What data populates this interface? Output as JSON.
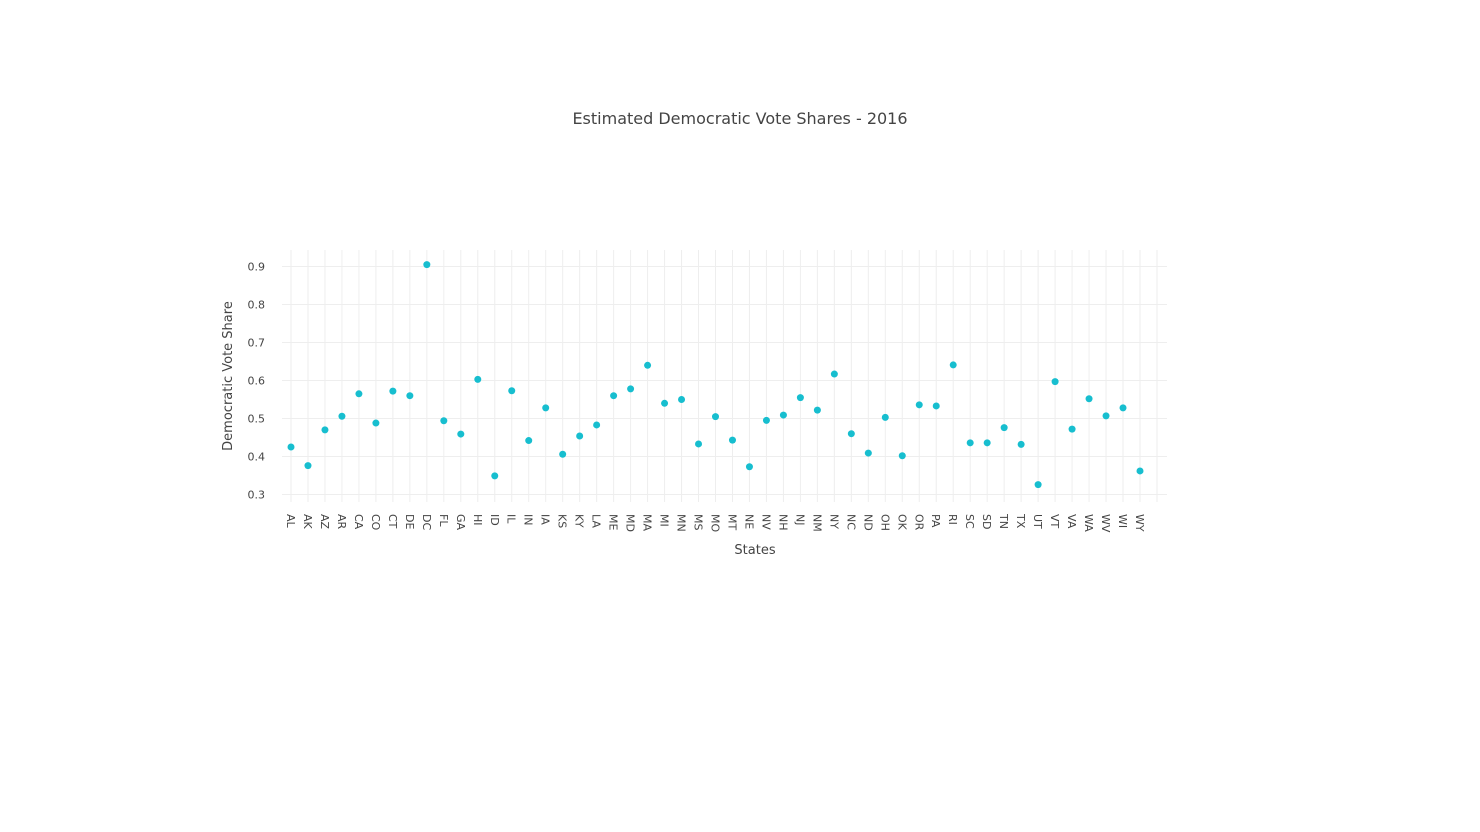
{
  "chart_data": {
    "type": "scatter",
    "title": "Estimated Democratic Vote Shares - 2016",
    "xlabel": "States",
    "ylabel": "Democratic Vote Share",
    "ylim": [
      0.28,
      0.92
    ],
    "yticks": [
      0.3,
      0.4,
      0.5,
      0.6,
      0.7,
      0.8,
      0.9
    ],
    "grid": true,
    "marker_color": "#17becf",
    "categories": [
      "AL",
      "AK",
      "AZ",
      "AR",
      "CA",
      "CO",
      "CT",
      "DE",
      "DC",
      "FL",
      "GA",
      "HI",
      "ID",
      "IL",
      "IN",
      "IA",
      "KS",
      "KY",
      "LA",
      "ME",
      "MD",
      "MA",
      "MI",
      "MN",
      "MS",
      "MO",
      "MT",
      "NE",
      "NV",
      "NH",
      "NJ",
      "NM",
      "NY",
      "NC",
      "ND",
      "OH",
      "OK",
      "OR",
      "PA",
      "RI",
      "SC",
      "SD",
      "TN",
      "TX",
      "UT",
      "VT",
      "VA",
      "WA",
      "WV",
      "WI",
      "WY"
    ],
    "values": [
      0.425,
      0.376,
      0.47,
      0.506,
      0.565,
      0.488,
      0.572,
      0.56,
      0.905,
      0.494,
      0.459,
      0.603,
      0.349,
      0.573,
      0.442,
      0.528,
      0.406,
      0.454,
      0.483,
      0.56,
      0.578,
      0.64,
      0.54,
      0.55,
      0.433,
      0.505,
      0.443,
      0.373,
      0.495,
      0.509,
      0.555,
      0.522,
      0.617,
      0.46,
      0.409,
      0.503,
      0.402,
      0.536,
      0.533,
      0.641,
      0.436,
      0.436,
      0.476,
      0.432,
      0.326,
      0.597,
      0.472,
      0.552,
      0.507,
      0.528,
      0.362
    ]
  }
}
